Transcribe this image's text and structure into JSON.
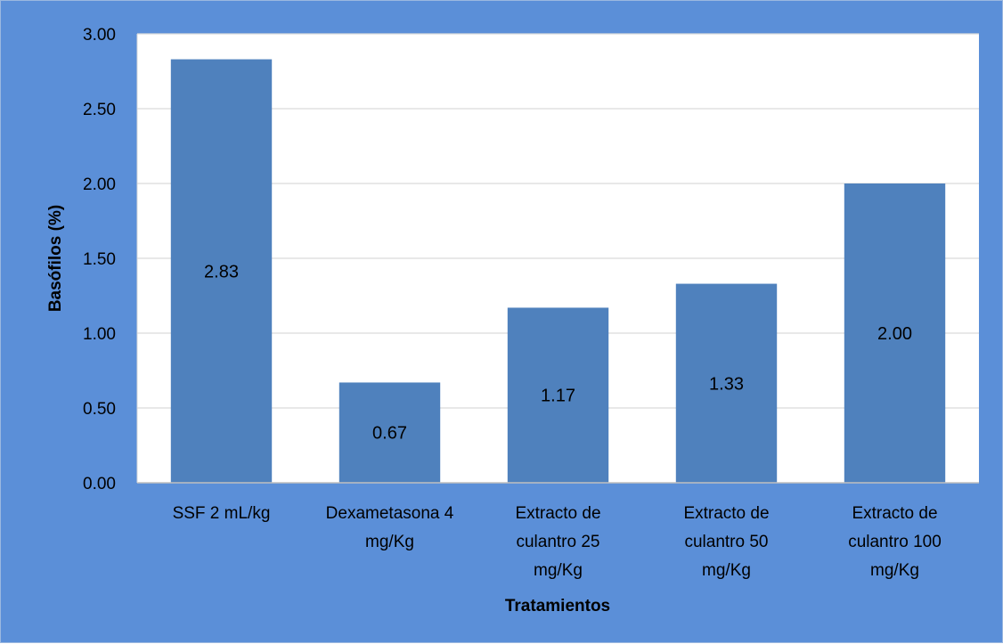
{
  "chart_data": {
    "type": "bar",
    "categories": [
      [
        "SSF 2 mL/kg"
      ],
      [
        "Dexametasona 4",
        "mg/Kg"
      ],
      [
        "Extracto de",
        "culantro 25",
        "mg/Kg"
      ],
      [
        "Extracto de",
        "culantro 50",
        "mg/Kg"
      ],
      [
        "Extracto de",
        "culantro 100",
        "mg/Kg"
      ]
    ],
    "values": [
      2.83,
      0.67,
      1.17,
      1.33,
      2.0
    ],
    "data_labels": [
      "2.83",
      "0.67",
      "1.17",
      "1.33",
      "2.00"
    ],
    "ylabel": "Basófilos (%)",
    "xlabel": "Tratamientos",
    "ylim": [
      0,
      3
    ],
    "yticks": [
      "0.00",
      "0.50",
      "1.00",
      "1.50",
      "2.00",
      "2.50",
      "3.00"
    ],
    "ytick_values": [
      0,
      0.5,
      1,
      1.5,
      2,
      2.5,
      3
    ],
    "grid": true,
    "legend": "none",
    "colors": {
      "background": "#5b8fd8",
      "plot_area": "#ffffff",
      "bar": "#4f81bd",
      "gridline": "#d9d9d9"
    }
  }
}
